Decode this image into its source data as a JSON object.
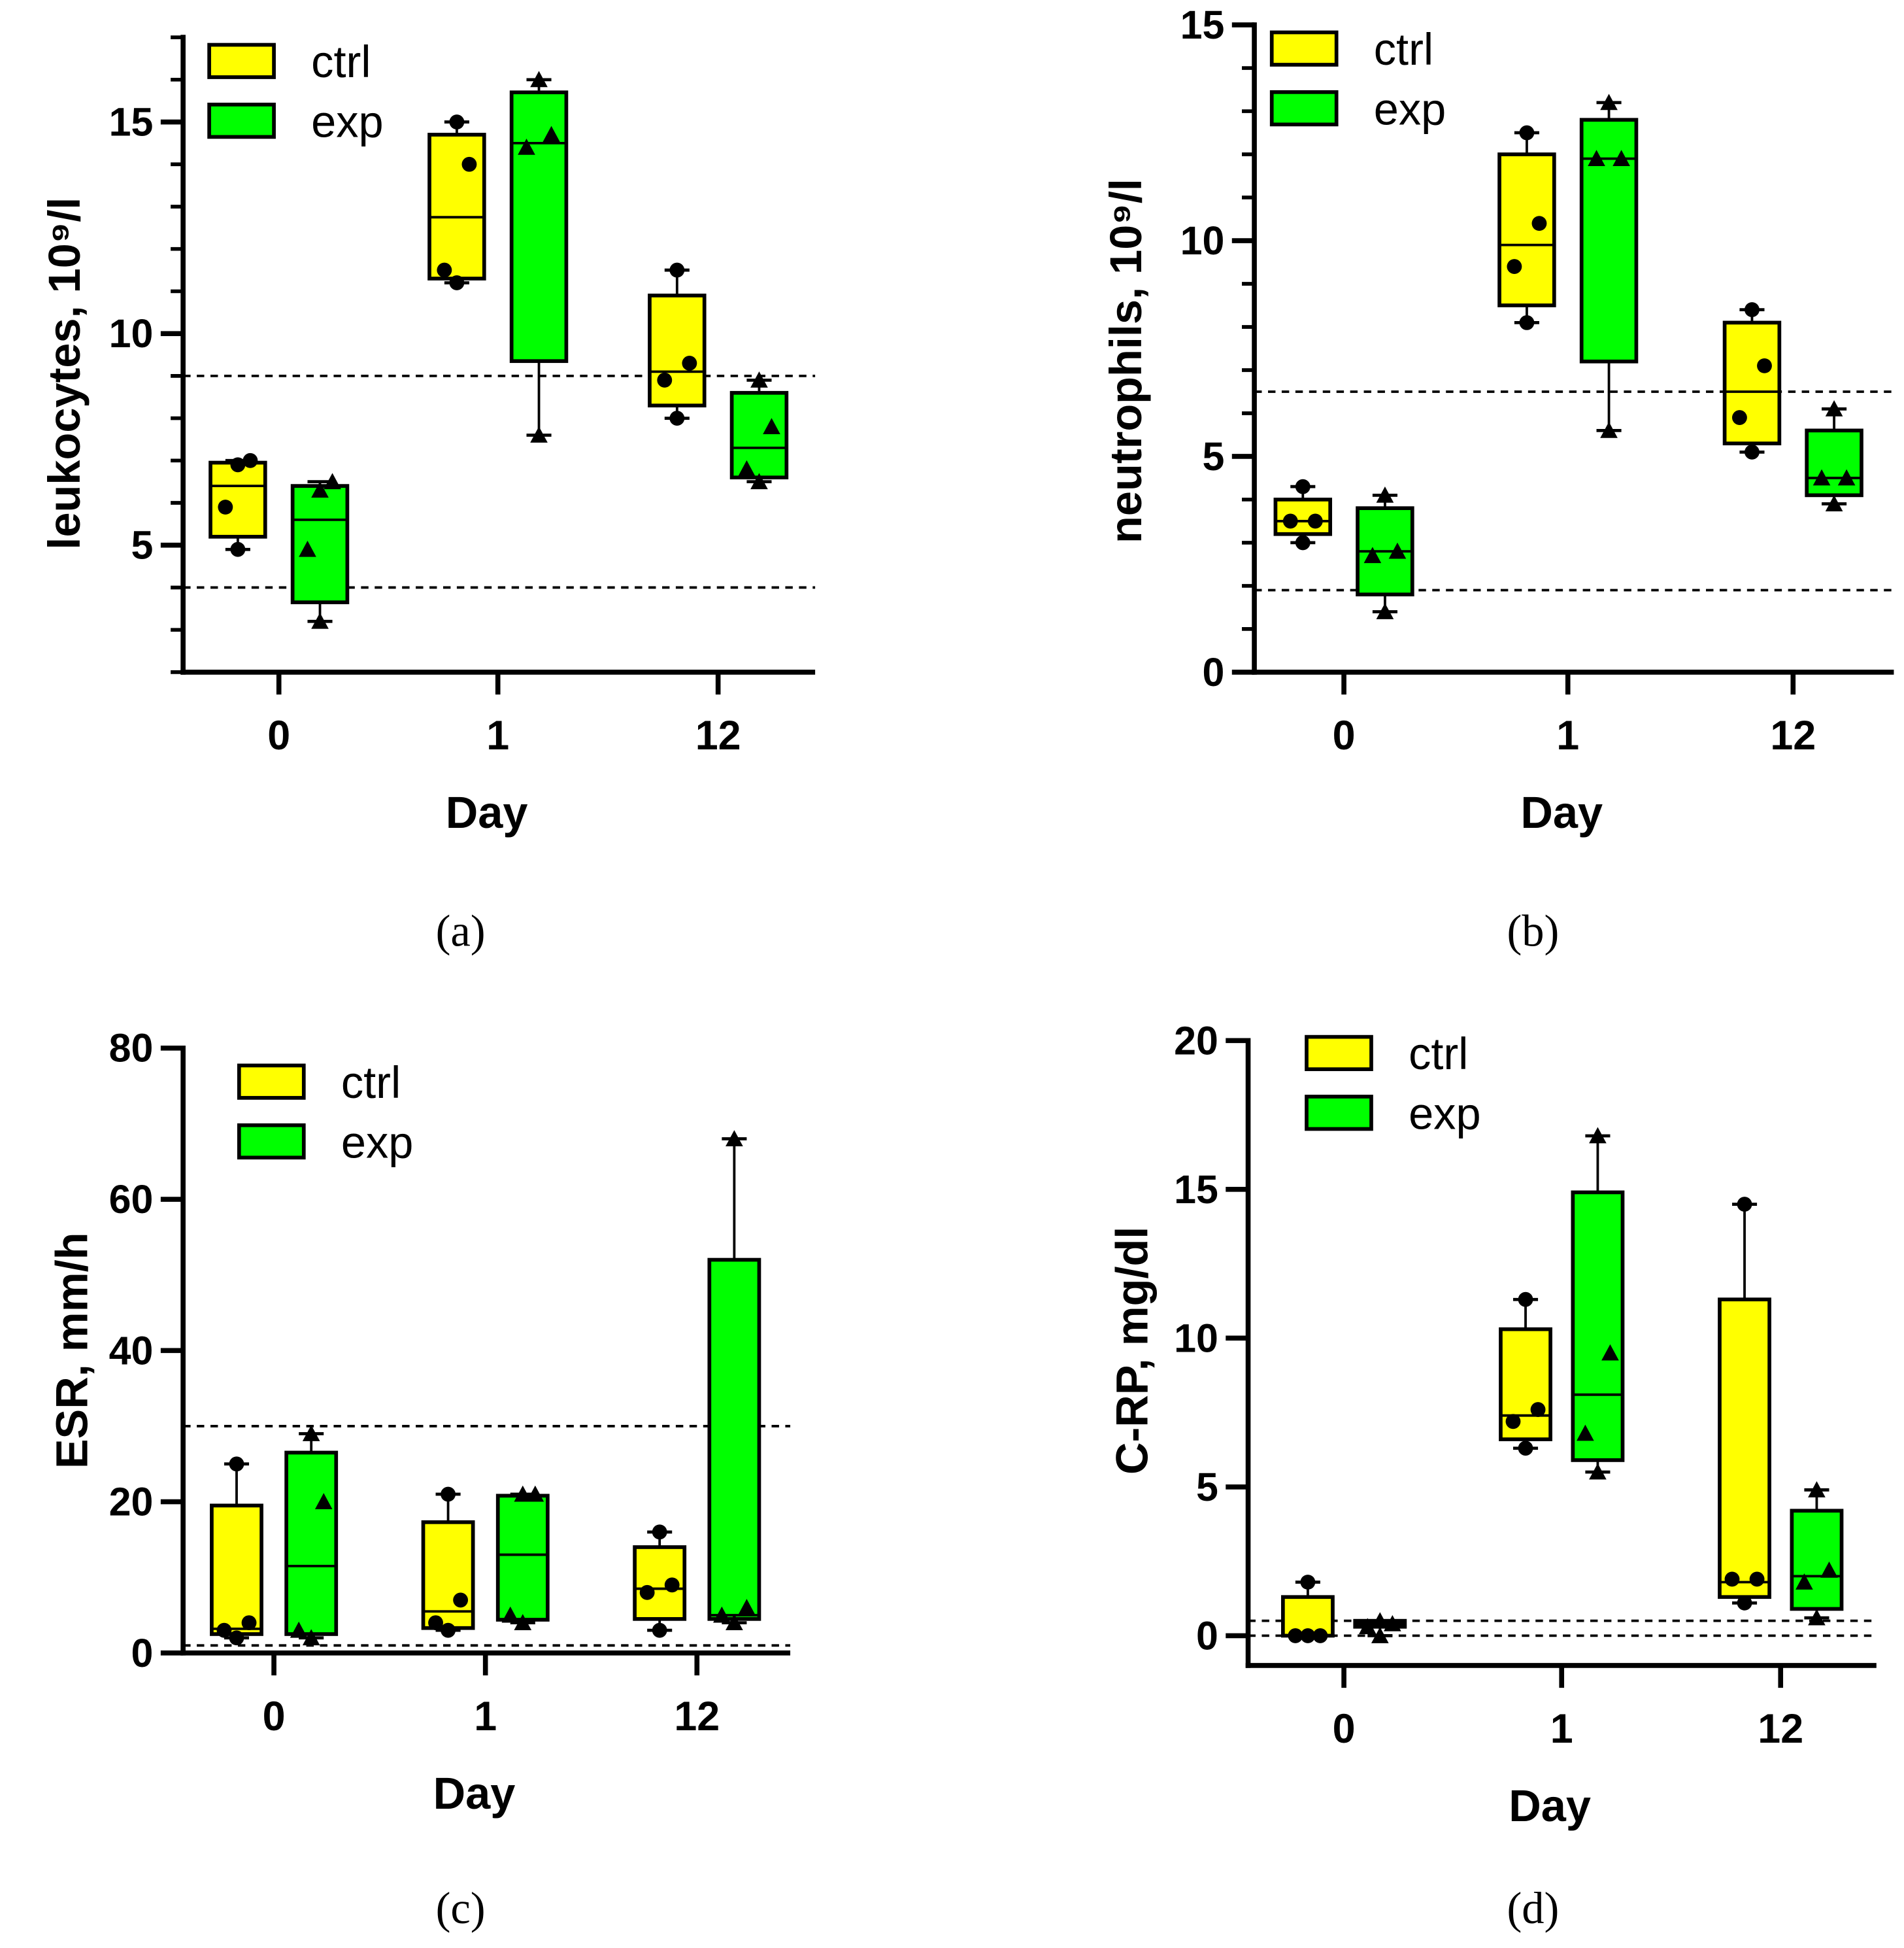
{
  "colors": {
    "ctrl": "#ffff00",
    "exp": "#00ff00",
    "axis": "#000000"
  },
  "chart_data": [
    {
      "type": "box",
      "panel": "(a)",
      "xlabel": "Day",
      "ylabel": "leukocytes, 10⁹/l",
      "categories": [
        "0",
        "1",
        "12"
      ],
      "ylim": [
        2,
        17
      ],
      "yticks": [
        5,
        10,
        15
      ],
      "minor_step": 1,
      "reference_lines": [
        9,
        4
      ],
      "legend": [
        "ctrl",
        "exp"
      ],
      "legend_placement": "top-left",
      "series": [
        {
          "name": "ctrl",
          "marker": "circle",
          "boxes": [
            {
              "min": 4.9,
              "q1": 5.2,
              "median": 6.4,
              "q3": 6.95,
              "max": 7.0,
              "points": [
                6.9,
                7.0,
                5.9,
                4.9
              ]
            },
            {
              "min": 11.2,
              "q1": 11.3,
              "median": 12.75,
              "q3": 14.7,
              "max": 15.0,
              "points": [
                15.0,
                14.0,
                11.5,
                11.2
              ]
            },
            {
              "min": 8.0,
              "q1": 8.3,
              "median": 9.1,
              "q3": 10.9,
              "max": 11.5,
              "points": [
                11.5,
                9.3,
                8.9,
                8.0
              ]
            }
          ]
        },
        {
          "name": "exp",
          "marker": "triangle",
          "boxes": [
            {
              "min": 3.2,
              "q1": 3.65,
              "median": 5.6,
              "q3": 6.4,
              "max": 6.5,
              "points": [
                6.3,
                6.5,
                4.9,
                3.2
              ]
            },
            {
              "min": 7.6,
              "q1": 9.35,
              "median": 14.5,
              "q3": 15.7,
              "max": 16.0,
              "points": [
                16.0,
                14.7,
                14.4,
                7.6
              ]
            },
            {
              "min": 6.5,
              "q1": 6.6,
              "median": 7.3,
              "q3": 8.6,
              "max": 8.9,
              "points": [
                8.9,
                7.8,
                6.8,
                6.5
              ]
            }
          ]
        }
      ]
    },
    {
      "type": "box",
      "panel": "(b)",
      "xlabel": "Day",
      "ylabel": "neutrophils, 10⁹/l",
      "categories": [
        "0",
        "1",
        "12"
      ],
      "ylim": [
        0,
        15
      ],
      "yticks": [
        0,
        5,
        10,
        15
      ],
      "minor_step": 1,
      "reference_lines": [
        6.5,
        1.9
      ],
      "legend": [
        "ctrl",
        "exp"
      ],
      "legend_placement": "top-left",
      "series": [
        {
          "name": "ctrl",
          "marker": "circle",
          "boxes": [
            {
              "min": 3.0,
              "q1": 3.2,
              "median": 3.5,
              "q3": 4.0,
              "max": 4.3,
              "points": [
                4.3,
                3.5,
                3.5,
                3.0
              ]
            },
            {
              "min": 8.1,
              "q1": 8.5,
              "median": 9.9,
              "q3": 12.0,
              "max": 12.5,
              "points": [
                12.5,
                10.4,
                9.4,
                8.1
              ]
            },
            {
              "min": 5.1,
              "q1": 5.3,
              "median": 6.5,
              "q3": 8.1,
              "max": 8.4,
              "points": [
                8.4,
                7.1,
                5.9,
                5.1
              ]
            }
          ]
        },
        {
          "name": "exp",
          "marker": "triangle",
          "boxes": [
            {
              "min": 1.4,
              "q1": 1.8,
              "median": 2.8,
              "q3": 3.8,
              "max": 4.1,
              "points": [
                4.1,
                2.8,
                2.7,
                1.4
              ]
            },
            {
              "min": 5.6,
              "q1": 7.2,
              "median": 11.9,
              "q3": 12.8,
              "max": 13.2,
              "points": [
                13.2,
                11.9,
                11.9,
                5.6
              ]
            },
            {
              "min": 3.9,
              "q1": 4.1,
              "median": 4.5,
              "q3": 5.6,
              "max": 6.1,
              "points": [
                6.1,
                4.5,
                4.5,
                3.9
              ]
            }
          ]
        }
      ]
    },
    {
      "type": "box",
      "panel": "(c)",
      "xlabel": "Day",
      "ylabel": "ESR, mm/h",
      "categories": [
        "0",
        "1",
        "12"
      ],
      "ylim": [
        0,
        80
      ],
      "yticks": [
        0,
        20,
        40,
        60,
        80
      ],
      "minor_step": 0,
      "reference_lines": [
        30,
        1
      ],
      "legend": [
        "ctrl",
        "exp"
      ],
      "legend_placement": "top-left",
      "series": [
        {
          "name": "ctrl",
          "marker": "circle",
          "boxes": [
            {
              "min": 2,
              "q1": 2.5,
              "median": 3.2,
              "q3": 19.5,
              "max": 25,
              "points": [
                25,
                4,
                3,
                2
              ]
            },
            {
              "min": 3,
              "q1": 3.3,
              "median": 5.5,
              "q3": 17.3,
              "max": 21,
              "points": [
                21,
                7,
                4,
                3
              ]
            },
            {
              "min": 3,
              "q1": 4.5,
              "median": 8.5,
              "q3": 14,
              "max": 16,
              "points": [
                16,
                9,
                8,
                3
              ]
            }
          ]
        },
        {
          "name": "exp",
          "marker": "triangle",
          "boxes": [
            {
              "min": 2,
              "q1": 2.5,
              "median": 11.5,
              "q3": 26.5,
              "max": 29,
              "points": [
                29,
                20,
                3,
                2
              ]
            },
            {
              "min": 4,
              "q1": 4.4,
              "median": 13,
              "q3": 20.8,
              "max": 21,
              "points": [
                21,
                21,
                5,
                4
              ]
            },
            {
              "min": 4,
              "q1": 4.5,
              "median": 5,
              "q3": 52,
              "max": 68,
              "points": [
                68,
                6,
                5,
                4
              ]
            }
          ]
        }
      ]
    },
    {
      "type": "box",
      "panel": "(d)",
      "xlabel": "Day",
      "ylabel": "C-RP, mg/dl",
      "categories": [
        "0",
        "1",
        "12"
      ],
      "ylim": [
        -1,
        20
      ],
      "yticks": [
        0,
        5,
        10,
        15,
        20
      ],
      "minor_step": 0,
      "reference_lines": [
        0.5,
        0
      ],
      "legend": [
        "ctrl",
        "exp"
      ],
      "legend_placement": "top-left",
      "series": [
        {
          "name": "ctrl",
          "marker": "circle",
          "boxes": [
            {
              "min": 0,
              "q1": 0,
              "median": 0,
              "q3": 1.3,
              "max": 1.8,
              "points": [
                1.8,
                0,
                0,
                0
              ]
            },
            {
              "min": 6.3,
              "q1": 6.6,
              "median": 7.4,
              "q3": 10.3,
              "max": 11.3,
              "points": [
                11.3,
                7.6,
                7.2,
                6.3
              ]
            },
            {
              "min": 1.1,
              "q1": 1.3,
              "median": 1.8,
              "q3": 11.3,
              "max": 14.5,
              "points": [
                14.5,
                1.9,
                1.9,
                1.1
              ]
            }
          ]
        },
        {
          "name": "exp",
          "marker": "triangle",
          "boxes": [
            {
              "min": 0,
              "q1": 0.3,
              "median": 0.4,
              "q3": 0.5,
              "max": 0.5,
              "points": [
                0.5,
                0.4,
                0.3,
                0
              ]
            },
            {
              "min": 5.5,
              "q1": 5.9,
              "median": 8.1,
              "q3": 14.9,
              "max": 16.8,
              "points": [
                16.8,
                9.5,
                6.8,
                5.5
              ]
            },
            {
              "min": 0.6,
              "q1": 0.9,
              "median": 2.0,
              "q3": 4.2,
              "max": 4.9,
              "points": [
                4.9,
                2.2,
                1.8,
                0.6
              ]
            }
          ]
        }
      ]
    }
  ]
}
